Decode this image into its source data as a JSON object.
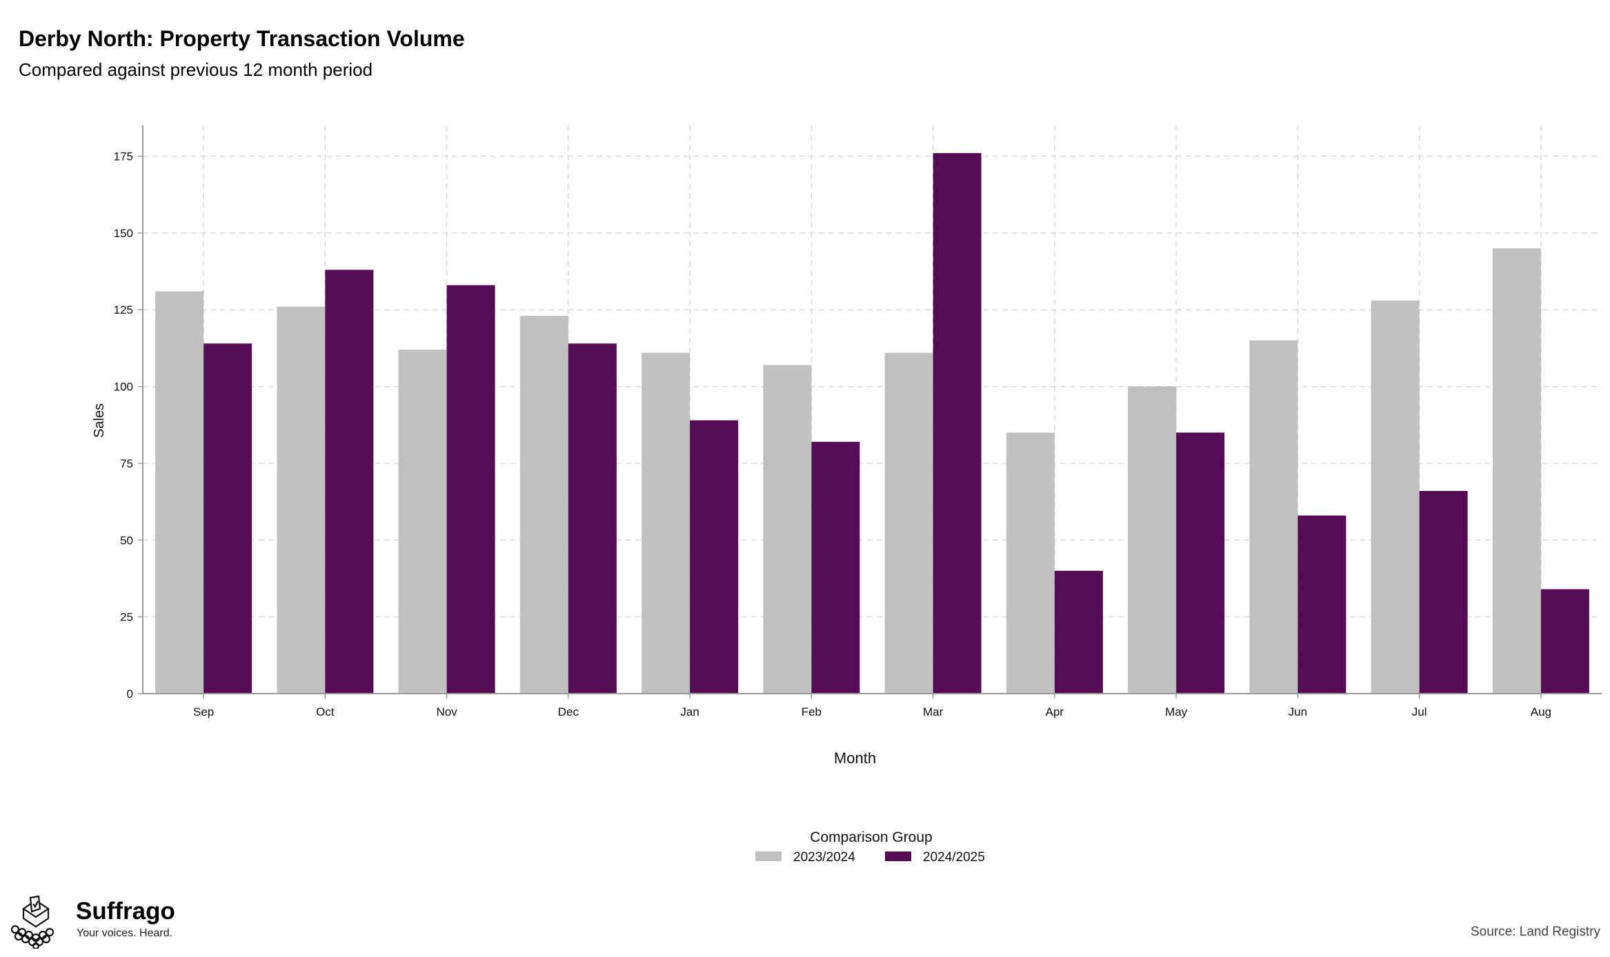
{
  "title": "Derby North: Property Transaction Volume",
  "subtitle": "Compared against previous 12 month period",
  "brand": {
    "name": "Suffrago",
    "tagline": "Your voices. Heard."
  },
  "source": "Source: Land Registry",
  "colors": {
    "series_2023": "#c0c0c0",
    "series_2024": "#560c54",
    "grid": "#d9d9d9",
    "axis": "#999999"
  },
  "chart_data": {
    "type": "bar",
    "title": "Derby North: Property Transaction Volume",
    "subtitle": "Compared against previous 12 month period",
    "xlabel": "Month",
    "ylabel": "Sales",
    "ylim": [
      0,
      185
    ],
    "yticks": [
      0,
      25,
      50,
      75,
      100,
      125,
      150,
      175
    ],
    "grid": true,
    "legend_title": "Comparison Group",
    "legend_position": "bottom",
    "categories": [
      "Sep",
      "Oct",
      "Nov",
      "Dec",
      "Jan",
      "Feb",
      "Mar",
      "Apr",
      "May",
      "Jun",
      "Jul",
      "Aug"
    ],
    "series": [
      {
        "name": "2023/2024",
        "color": "#c0c0c0",
        "values": [
          131,
          126,
          112,
          123,
          111,
          107,
          111,
          85,
          100,
          115,
          128,
          145
        ]
      },
      {
        "name": "2024/2025",
        "color": "#560c54",
        "values": [
          114,
          138,
          133,
          114,
          89,
          82,
          176,
          40,
          85,
          58,
          66,
          34
        ]
      }
    ]
  }
}
